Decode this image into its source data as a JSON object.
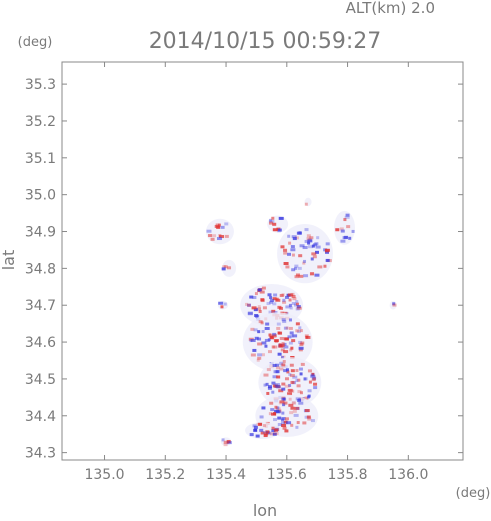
{
  "chart_data": {
    "type": "heatmap",
    "header_left": "(deg)",
    "alt_label": "ALT(km) 2.0",
    "title": "2014/10/15 00:59:27",
    "xlabel": "lon",
    "ylabel": "lat",
    "xunit": "(deg)",
    "xlim": [
      134.86,
      136.18
    ],
    "ylim": [
      34.28,
      35.36
    ],
    "x_ticks": [
      "135.0",
      "135.2",
      "135.4",
      "135.6",
      "135.8",
      "136.0"
    ],
    "y_ticks": [
      "34.3",
      "34.4",
      "34.5",
      "34.6",
      "34.7",
      "34.8",
      "34.9",
      "35.0",
      "35.1",
      "35.2",
      "35.3"
    ],
    "grid": false,
    "colors": {
      "positive": "#e03030",
      "negative": "#3a3ae0",
      "frame": "#888888",
      "text": "#7a7a7a"
    },
    "clusters": [
      {
        "lon": 135.38,
        "lat": 34.9,
        "rx": 0.04,
        "ry": 0.03,
        "n": 14
      },
      {
        "lon": 135.41,
        "lat": 34.8,
        "rx": 0.02,
        "ry": 0.02,
        "n": 4
      },
      {
        "lon": 135.57,
        "lat": 34.92,
        "rx": 0.03,
        "ry": 0.02,
        "n": 10
      },
      {
        "lon": 135.66,
        "lat": 34.84,
        "rx": 0.08,
        "ry": 0.07,
        "n": 60
      },
      {
        "lon": 135.79,
        "lat": 34.91,
        "rx": 0.03,
        "ry": 0.04,
        "n": 12
      },
      {
        "lon": 135.55,
        "lat": 34.7,
        "rx": 0.09,
        "ry": 0.05,
        "n": 70
      },
      {
        "lon": 135.57,
        "lat": 34.6,
        "rx": 0.1,
        "ry": 0.07,
        "n": 90
      },
      {
        "lon": 135.61,
        "lat": 34.49,
        "rx": 0.09,
        "ry": 0.06,
        "n": 80
      },
      {
        "lon": 135.6,
        "lat": 34.4,
        "rx": 0.09,
        "ry": 0.05,
        "n": 60
      },
      {
        "lon": 135.52,
        "lat": 34.36,
        "rx": 0.05,
        "ry": 0.02,
        "n": 25
      },
      {
        "lon": 135.4,
        "lat": 34.33,
        "rx": 0.015,
        "ry": 0.01,
        "n": 5
      },
      {
        "lon": 135.95,
        "lat": 34.7,
        "rx": 0.01,
        "ry": 0.01,
        "n": 2
      },
      {
        "lon": 135.39,
        "lat": 34.7,
        "rx": 0.015,
        "ry": 0.01,
        "n": 3
      },
      {
        "lon": 135.67,
        "lat": 34.98,
        "rx": 0.01,
        "ry": 0.01,
        "n": 1
      }
    ]
  }
}
